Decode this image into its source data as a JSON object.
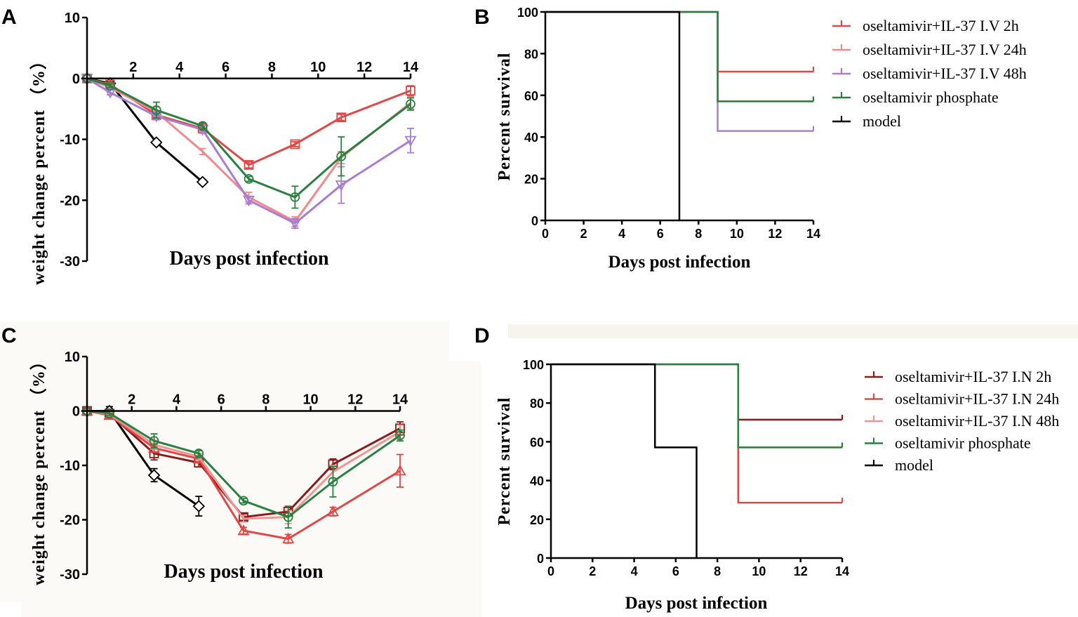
{
  "panels": {
    "A": "A",
    "B": "B",
    "C": "C",
    "D": "D"
  },
  "chart_data": [
    {
      "id": "A",
      "type": "line",
      "xlabel": "Days post infection",
      "ylabel": "weight change percent （%）",
      "xlim": [
        0,
        14
      ],
      "ylim": [
        -30,
        10
      ],
      "xticks": [
        2,
        4,
        6,
        8,
        10,
        12,
        14
      ],
      "yticks": [
        10,
        0,
        -10,
        -20,
        -30
      ],
      "series": [
        {
          "name": "model",
          "color": "#000000",
          "marker": "diamond",
          "x": [
            0,
            1,
            3,
            5
          ],
          "y": [
            0,
            -0.8,
            -10.5,
            -17
          ],
          "err": [
            0,
            0.3,
            0.3,
            0.4
          ]
        },
        {
          "name": "oseltamivir+IL-37 I.V 2h",
          "color": "#e04848",
          "marker": "square",
          "x": [
            0,
            1,
            3,
            5,
            7,
            9,
            11,
            14
          ],
          "y": [
            0,
            -1,
            -6,
            -8.2,
            -14.2,
            -10.8,
            -6.4,
            -2
          ],
          "err": [
            0,
            0.3,
            0.4,
            0.4,
            0.5,
            0.4,
            0.5,
            0.8
          ]
        },
        {
          "name": "oseltamivir+IL-37 I.V 24h",
          "color": "#f08a8a",
          "marker": "none",
          "x": [
            0,
            1,
            3,
            5,
            7,
            9,
            11,
            14
          ],
          "y": [
            0,
            -1.5,
            -5.5,
            -12,
            -19.5,
            -23.5,
            -13,
            -4
          ],
          "err": [
            0,
            0.3,
            0.8,
            0.5,
            0.8,
            0.8,
            1.0,
            1.0
          ]
        },
        {
          "name": "oseltamivir+IL-37 I.V 48h",
          "color": "#a97dd0",
          "marker": "triangle-down",
          "x": [
            0,
            1,
            3,
            5,
            7,
            9,
            11,
            14
          ],
          "y": [
            0,
            -2.3,
            -6.2,
            -8.4,
            -20,
            -23.8,
            -17.5,
            -10.2
          ],
          "err": [
            0,
            0.4,
            0.6,
            0.6,
            0.6,
            0.8,
            3.0,
            2.0
          ]
        },
        {
          "name": "oseltamivir phosphate",
          "color": "#2a8040",
          "marker": "circle",
          "x": [
            0,
            1,
            3,
            5,
            7,
            9,
            11,
            14
          ],
          "y": [
            0,
            -1.2,
            -5.2,
            -7.8,
            -16.5,
            -19.5,
            -12.8,
            -4.2
          ],
          "err": [
            0,
            0.3,
            1.3,
            0.5,
            0.4,
            1.8,
            3.2,
            1.0
          ]
        }
      ]
    },
    {
      "id": "B",
      "type": "line",
      "step": true,
      "xlabel": "Days post infection",
      "ylabel": "Percent survival",
      "xlim": [
        0,
        14
      ],
      "ylim": [
        0,
        100
      ],
      "xticks": [
        0,
        2,
        4,
        6,
        8,
        10,
        12,
        14
      ],
      "yticks": [
        0,
        20,
        40,
        60,
        80,
        100
      ],
      "series": [
        {
          "name": "oseltamivir+IL-37 I.V 2h",
          "color": "#e04848",
          "x": [
            0,
            9,
            14
          ],
          "y": [
            100,
            71.4,
            71.4
          ]
        },
        {
          "name": "oseltamivir+IL-37 I.V 24h",
          "color": "#f08a8a",
          "x": [
            0,
            9,
            14
          ],
          "y": [
            100,
            57.1,
            57.1
          ]
        },
        {
          "name": "oseltamivir+IL-37 I.V 48h",
          "color": "#a97dd0",
          "x": [
            0,
            9,
            14
          ],
          "y": [
            100,
            42.9,
            42.9
          ]
        },
        {
          "name": "oseltamivir phosphate",
          "color": "#2a8040",
          "x": [
            0,
            9,
            14
          ],
          "y": [
            100,
            57.1,
            57.1
          ]
        },
        {
          "name": "model",
          "color": "#000000",
          "x": [
            0,
            7
          ],
          "y": [
            100,
            0
          ]
        }
      ]
    },
    {
      "id": "C",
      "type": "line",
      "xlabel": "Days post infection",
      "ylabel": "weight change percent （%）",
      "xlim": [
        0,
        14
      ],
      "ylim": [
        -30,
        10
      ],
      "xticks": [
        2,
        4,
        6,
        8,
        10,
        12,
        14
      ],
      "yticks": [
        10,
        0,
        -10,
        -20,
        -30
      ],
      "series": [
        {
          "name": "model",
          "color": "#000000",
          "marker": "diamond",
          "x": [
            0,
            1,
            3,
            5
          ],
          "y": [
            0,
            0,
            -11.8,
            -17.5
          ],
          "err": [
            0,
            0.8,
            1.2,
            1.8
          ]
        },
        {
          "name": "oseltamivir+IL-37 I.N 2h",
          "color": "#8b1a1a",
          "marker": "square",
          "x": [
            0,
            1,
            3,
            5,
            7,
            9,
            11,
            14
          ],
          "y": [
            0,
            -0.5,
            -7.8,
            -9.5,
            -19.5,
            -18.5,
            -9.8,
            -3.2
          ],
          "err": [
            0,
            0.4,
            1.2,
            0.8,
            0.6,
            0.8,
            1.0,
            1.2
          ]
        },
        {
          "name": "oseltamivir+IL-37 I.N 24h",
          "color": "#e04848",
          "marker": "triangle",
          "x": [
            0,
            1,
            3,
            5,
            7,
            9,
            11,
            14
          ],
          "y": [
            0,
            -0.8,
            -6.8,
            -8.8,
            -22,
            -23.5,
            -18.5,
            -11
          ],
          "err": [
            0,
            0.4,
            0.8,
            0.6,
            0.6,
            0.8,
            0.8,
            3.0
          ]
        },
        {
          "name": "oseltamivir+IL-37 I.N 48h",
          "color": "#f09595",
          "marker": "none",
          "x": [
            0,
            1,
            3,
            5,
            7,
            9,
            11,
            14
          ],
          "y": [
            0,
            -0.6,
            -6.2,
            -8.4,
            -19.8,
            -19.5,
            -11.2,
            -3.8
          ],
          "err": [
            0,
            0.4,
            0.8,
            0.6,
            0.6,
            1.2,
            1.2,
            1.2
          ]
        },
        {
          "name": "oseltamivir phosphate",
          "color": "#2a8040",
          "marker": "circle",
          "x": [
            0,
            1,
            3,
            5,
            7,
            9,
            11,
            14
          ],
          "y": [
            0,
            -0.4,
            -5.5,
            -7.8,
            -16.5,
            -19.5,
            -13,
            -4.5
          ],
          "err": [
            0,
            0.4,
            1.3,
            0.5,
            0.4,
            2.0,
            2.8,
            1.0
          ]
        }
      ]
    },
    {
      "id": "D",
      "type": "line",
      "step": true,
      "xlabel": "Days post infection",
      "ylabel": "Percent survival",
      "xlim": [
        0,
        14
      ],
      "ylim": [
        0,
        100
      ],
      "xticks": [
        0,
        2,
        4,
        6,
        8,
        10,
        12,
        14
      ],
      "yticks": [
        0,
        20,
        40,
        60,
        80,
        100
      ],
      "series": [
        {
          "name": "oseltamivir+IL-37 I.N 2h",
          "color": "#8b1a1a",
          "x": [
            0,
            9,
            14
          ],
          "y": [
            100,
            71.4,
            71.4
          ]
        },
        {
          "name": "oseltamivir+IL-37 I.N 24h",
          "color": "#e04848",
          "x": [
            0,
            9,
            14
          ],
          "y": [
            100,
            28.6,
            28.6
          ]
        },
        {
          "name": "oseltamivir+IL-37 I.N 48h",
          "color": "#f09595",
          "x": [
            0,
            9,
            14
          ],
          "y": [
            100,
            57.1,
            57.1
          ]
        },
        {
          "name": "oseltamivir phosphate",
          "color": "#2a8040",
          "x": [
            0,
            9,
            14
          ],
          "y": [
            100,
            57.1,
            57.1
          ]
        },
        {
          "name": "model",
          "color": "#000000",
          "x": [
            0,
            5,
            7
          ],
          "y": [
            100,
            57.1,
            0
          ]
        }
      ]
    }
  ]
}
